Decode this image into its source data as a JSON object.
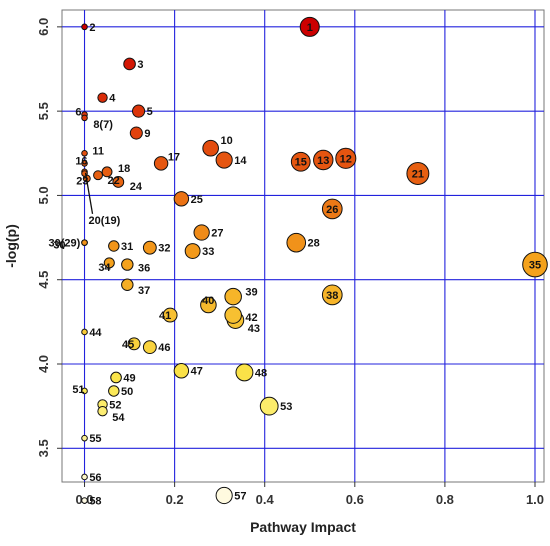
{
  "chart_data": {
    "type": "scatter",
    "xlabel": "Pathway Impact",
    "ylabel": "-log(p)",
    "xlim": [
      -0.05,
      1.02
    ],
    "ylim": [
      3.3,
      6.1
    ],
    "x_ticks": [
      "0.0",
      "0.2",
      "0.4",
      "0.6",
      "0.8",
      "1.0"
    ],
    "y_ticks": [
      "3.5",
      "4.0",
      "4.5",
      "5.0",
      "5.5",
      "6.0"
    ],
    "grid": true,
    "grid_color": "#2222dd",
    "size_encodes": "Pathway Impact",
    "color_encodes": "-log(p)",
    "color_scale": [
      "#fffbe6",
      "#fbe84c",
      "#f4a21c",
      "#e34a0e",
      "#cc0000"
    ],
    "points": [
      {
        "label": "1",
        "x": 0.5,
        "y": 6.0,
        "label_inside": true
      },
      {
        "label": "2",
        "x": 0.0,
        "y": 6.0
      },
      {
        "label": "3",
        "x": 0.1,
        "y": 5.78
      },
      {
        "label": "4",
        "x": 0.04,
        "y": 5.58
      },
      {
        "label": "5",
        "x": 0.12,
        "y": 5.5
      },
      {
        "label": "6",
        "x": 0.0,
        "y": 5.48
      },
      {
        "label": "8(7)",
        "x": 0.0,
        "y": 5.46
      },
      {
        "label": "9",
        "x": 0.115,
        "y": 5.37
      },
      {
        "label": "10",
        "x": 0.28,
        "y": 5.28
      },
      {
        "label": "11",
        "x": 0.0,
        "y": 5.25
      },
      {
        "label": "12",
        "x": 0.58,
        "y": 5.22,
        "label_inside": true
      },
      {
        "label": "13",
        "x": 0.53,
        "y": 5.21,
        "label_inside": true
      },
      {
        "label": "14",
        "x": 0.31,
        "y": 5.21
      },
      {
        "label": "15",
        "x": 0.48,
        "y": 5.2,
        "label_inside": true
      },
      {
        "label": "16",
        "x": 0.0,
        "y": 5.19
      },
      {
        "label": "17",
        "x": 0.17,
        "y": 5.19
      },
      {
        "label": "18",
        "x": 0.05,
        "y": 5.14
      },
      {
        "label": "19",
        "x": 0.0,
        "y": 5.14
      },
      {
        "label": "20",
        "x": 0.0,
        "y": 5.13
      },
      {
        "label": "21",
        "x": 0.74,
        "y": 5.13,
        "label_inside": true
      },
      {
        "label": "22",
        "x": 0.03,
        "y": 5.12
      },
      {
        "label": "23",
        "x": 0.005,
        "y": 5.1
      },
      {
        "label": "24",
        "x": 0.075,
        "y": 5.08
      },
      {
        "label": "25",
        "x": 0.215,
        "y": 4.98
      },
      {
        "label": "26",
        "x": 0.55,
        "y": 4.92,
        "label_inside": true
      },
      {
        "label": "27",
        "x": 0.26,
        "y": 4.78
      },
      {
        "label": "28",
        "x": 0.47,
        "y": 4.72
      },
      {
        "label": "29",
        "x": 0.0,
        "y": 4.72
      },
      {
        "label": "30",
        "x": 0.0,
        "y": 4.72
      },
      {
        "label": "31",
        "x": 0.065,
        "y": 4.7
      },
      {
        "label": "32",
        "x": 0.145,
        "y": 4.69
      },
      {
        "label": "33",
        "x": 0.24,
        "y": 4.67
      },
      {
        "label": "34",
        "x": 0.055,
        "y": 4.6
      },
      {
        "label": "35",
        "x": 1.0,
        "y": 4.59,
        "label_inside": true
      },
      {
        "label": "36",
        "x": 0.095,
        "y": 4.59
      },
      {
        "label": "37",
        "x": 0.095,
        "y": 4.47
      },
      {
        "label": "38",
        "x": 0.55,
        "y": 4.41,
        "label_inside": true
      },
      {
        "label": "39",
        "x": 0.33,
        "y": 4.4
      },
      {
        "label": "40",
        "x": 0.275,
        "y": 4.35
      },
      {
        "label": "41",
        "x": 0.19,
        "y": 4.29
      },
      {
        "label": "42",
        "x": 0.33,
        "y": 4.29
      },
      {
        "label": "43",
        "x": 0.335,
        "y": 4.26
      },
      {
        "label": "44",
        "x": 0.0,
        "y": 4.19
      },
      {
        "label": "45",
        "x": 0.11,
        "y": 4.12
      },
      {
        "label": "46",
        "x": 0.145,
        "y": 4.1
      },
      {
        "label": "47",
        "x": 0.215,
        "y": 3.96
      },
      {
        "label": "48",
        "x": 0.355,
        "y": 3.95
      },
      {
        "label": "49",
        "x": 0.07,
        "y": 3.92
      },
      {
        "label": "50",
        "x": 0.065,
        "y": 3.84
      },
      {
        "label": "51",
        "x": 0.0,
        "y": 3.84
      },
      {
        "label": "52",
        "x": 0.04,
        "y": 3.76
      },
      {
        "label": "53",
        "x": 0.41,
        "y": 3.75
      },
      {
        "label": "54",
        "x": 0.04,
        "y": 3.72
      },
      {
        "label": "55",
        "x": 0.0,
        "y": 3.56
      },
      {
        "label": "56",
        "x": 0.0,
        "y": 3.33
      },
      {
        "label": "57",
        "x": 0.31,
        "y": 3.22
      },
      {
        "label": "58",
        "x": 0.0,
        "y": 3.19
      }
    ],
    "annotations": [
      {
        "text": "20(19)",
        "points_to": "19"
      }
    ]
  }
}
